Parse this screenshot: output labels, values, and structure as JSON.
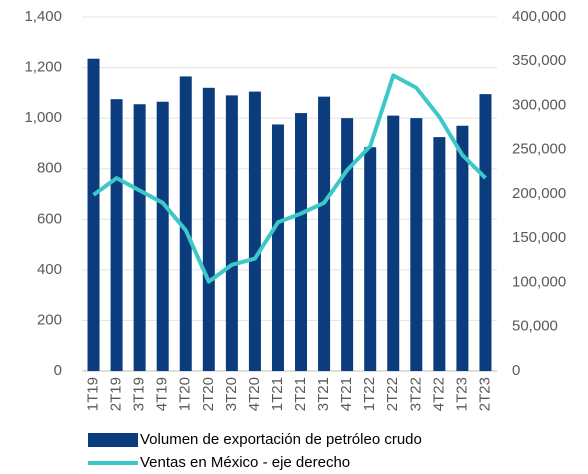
{
  "chart_data": {
    "type": "combo",
    "categories": [
      "1T19",
      "2T19",
      "3T19",
      "4T19",
      "1T20",
      "2T20",
      "3T20",
      "4T20",
      "1T21",
      "2T21",
      "3T21",
      "4T21",
      "1T22",
      "2T22",
      "3T22",
      "4T22",
      "1T23",
      "2T23"
    ],
    "series": [
      {
        "name": "Volumen de exportación de petróleo crudo",
        "type": "bar",
        "color": "#0b3c7d",
        "values": [
          1235,
          1075,
          1055,
          1065,
          1165,
          1120,
          1090,
          1105,
          975,
          1020,
          1085,
          1000,
          885,
          1010,
          1000,
          925,
          970,
          1095
        ]
      },
      {
        "name": "Ventas en México - eje derecho",
        "type": "line",
        "axis": "y2",
        "color": "#3cc8c8",
        "values": [
          199000,
          218000,
          204000,
          190000,
          159000,
          101000,
          120000,
          127000,
          168000,
          178000,
          190000,
          227000,
          254000,
          334000,
          320000,
          287000,
          244000,
          218000
        ]
      }
    ],
    "ylim": [
      0,
      1400
    ],
    "yticks": [
      0,
      200,
      400,
      600,
      800,
      {
        "value": 1000,
        "label": "1,000"
      },
      {
        "value": 1200,
        "label": "1,200"
      },
      {
        "value": 1400,
        "label": "1,400"
      }
    ],
    "y2lim": [
      0,
      400000
    ],
    "y2ticks": [
      0,
      {
        "value": 50000,
        "label": "50,000"
      },
      {
        "value": 100000,
        "label": "100,000"
      },
      {
        "value": 150000,
        "label": "150,000"
      },
      {
        "value": 200000,
        "label": "200,000"
      },
      {
        "value": 250000,
        "label": "250,000"
      },
      {
        "value": 300000,
        "label": "300,000"
      },
      {
        "value": 350000,
        "label": "350,000"
      },
      {
        "value": 400000,
        "label": "400,000"
      }
    ],
    "grid": true,
    "legend": "bottom"
  }
}
